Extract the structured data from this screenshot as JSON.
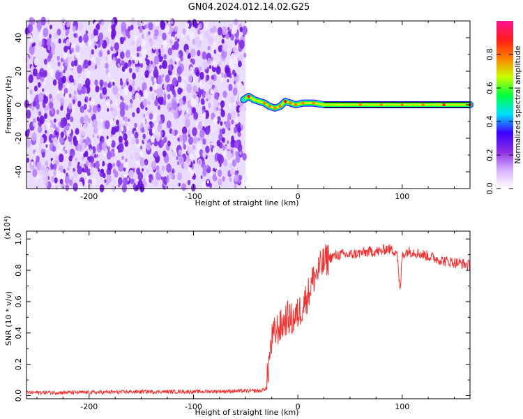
{
  "title": "GN04.2024.012.14.02.G25",
  "chart_data": [
    {
      "type": "heatmap",
      "xlabel": "Height of straight line (km)",
      "ylabel": "Frequency (Hz)",
      "xlim": [
        -260,
        165
      ],
      "ylim": [
        -50,
        50
      ],
      "xticks": [
        -200,
        -100,
        0,
        100
      ],
      "yticks": [
        -40,
        -20,
        0,
        20,
        40
      ],
      "colorbar": {
        "label": "Normalized spectral amplitude",
        "range": [
          0,
          1
        ],
        "ticks": [
          "0.0",
          "0.2",
          "0.4",
          "0.6",
          "0.8"
        ],
        "colormap": [
          "#ffffff",
          "#d8b0ff",
          "#8a2be2",
          "#3a00ff",
          "#00e0ff",
          "#00ff40",
          "#c8ff00",
          "#ff8000",
          "#ff1a1a",
          "#ff1493"
        ]
      },
      "noise_region": {
        "x_range": [
          -260,
          -50
        ],
        "frequency_range": [
          -50,
          50
        ],
        "typical_amplitude": [
          0.0,
          0.2
        ]
      },
      "signal_track": {
        "x": [
          -52,
          -47,
          -42,
          -37,
          -32,
          -27,
          -22,
          -17,
          -12,
          -7,
          -2,
          5,
          15,
          25,
          40,
          60,
          80,
          100,
          120,
          140,
          165
        ],
        "frequency": [
          3,
          5,
          3,
          2,
          1,
          -1,
          -2,
          -1,
          2,
          1,
          0,
          1,
          1,
          0,
          0,
          0,
          0,
          0,
          0,
          0,
          0
        ],
        "amplitude_peak": [
          0.5,
          0.9,
          0.7,
          0.75,
          0.8,
          0.85,
          0.8,
          0.85,
          0.9,
          0.85,
          0.8,
          0.85,
          0.8,
          0.75,
          0.7,
          0.8,
          0.85,
          0.8,
          0.85,
          0.9,
          0.9
        ]
      }
    },
    {
      "type": "line",
      "xlabel": "Height of straight line (km)",
      "ylabel": "SNR (10 * v/v)",
      "y_multiplier": "(x10⁴)",
      "xlim": [
        -260,
        165
      ],
      "ylim": [
        -0.02,
        1.05
      ],
      "xticks": [
        -200,
        -100,
        0,
        100
      ],
      "yticks": [
        "0.0",
        "0.2",
        "0.4",
        "0.6",
        "0.8",
        "1.0"
      ],
      "series": [
        {
          "color": "#ee3333",
          "x": [
            -260,
            -200,
            -150,
            -100,
            -50,
            -35,
            -30,
            -28,
            -25,
            -22,
            -20,
            -15,
            -10,
            -5,
            0,
            5,
            10,
            15,
            20,
            25,
            30,
            40,
            50,
            60,
            70,
            80,
            85,
            90,
            95,
            98,
            100,
            105,
            110,
            120,
            130,
            140,
            150,
            160,
            165
          ],
          "y": [
            0.02,
            0.02,
            0.025,
            0.025,
            0.03,
            0.03,
            0.05,
            0.2,
            0.35,
            0.4,
            0.42,
            0.45,
            0.5,
            0.48,
            0.52,
            0.58,
            0.65,
            0.75,
            0.8,
            0.85,
            0.88,
            0.9,
            0.9,
            0.91,
            0.92,
            0.92,
            0.94,
            0.93,
            0.92,
            0.65,
            0.9,
            0.92,
            0.92,
            0.9,
            0.88,
            0.86,
            0.85,
            0.84,
            0.83
          ]
        }
      ]
    }
  ]
}
